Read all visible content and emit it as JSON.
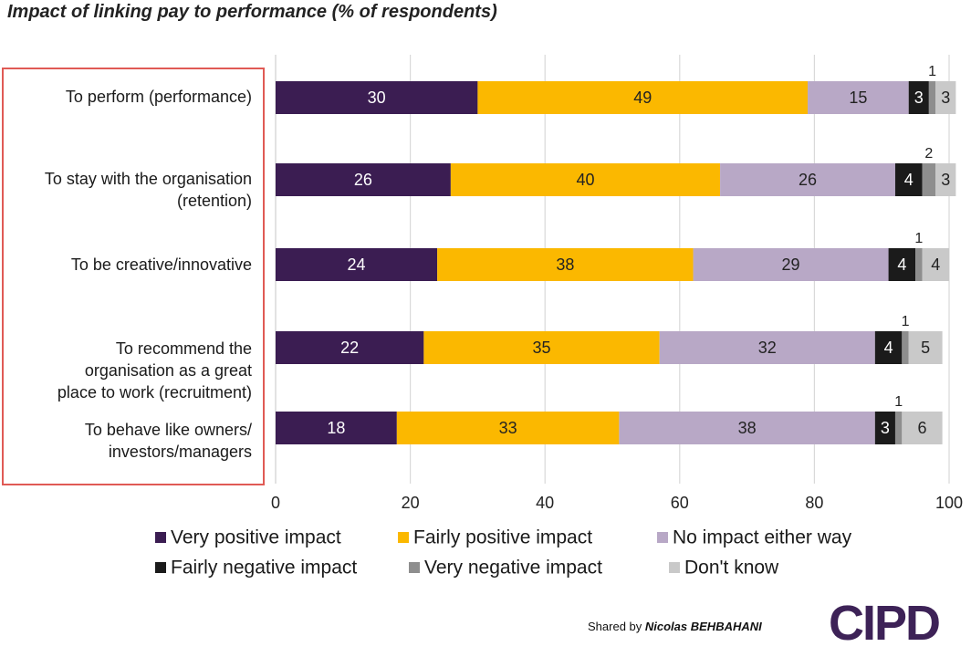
{
  "chart_data": {
    "type": "bar",
    "orientation": "horizontal",
    "stacked": true,
    "title": "Impact of linking pay to performance (% of respondents)",
    "categories": [
      [
        "To perform (performance)"
      ],
      [
        "To stay with the organisation",
        "(retention)"
      ],
      [
        "To be creative/innovative"
      ],
      [
        "To recommend the",
        "organisation as a great",
        "place to work (recruitment)"
      ],
      [
        "To behave like owners/",
        "investors/managers"
      ]
    ],
    "series": [
      {
        "name": "Very positive impact",
        "color": "#3b1d52",
        "label_color": "#ffffff",
        "values": [
          30,
          26,
          24,
          22,
          18
        ]
      },
      {
        "name": "Fairly positive impact",
        "color": "#fbb800",
        "label_color": "#222222",
        "values": [
          49,
          40,
          38,
          35,
          33
        ]
      },
      {
        "name": "No impact either way",
        "color": "#b8a8c6",
        "label_color": "#222222",
        "values": [
          15,
          26,
          29,
          32,
          38
        ]
      },
      {
        "name": "Fairly negative impact",
        "color": "#1b1b1b",
        "label_color": "#ffffff",
        "values": [
          3,
          4,
          4,
          4,
          3
        ]
      },
      {
        "name": "Very negative impact",
        "color": "#8e8e8e",
        "label_color": "#222222",
        "values": [
          1,
          2,
          1,
          1,
          1
        ]
      },
      {
        "name": "Don't know",
        "color": "#c9c9c9",
        "label_color": "#222222",
        "values": [
          3,
          3,
          4,
          5,
          6
        ]
      }
    ],
    "xlim": [
      0,
      100
    ],
    "xticks": [
      0,
      20,
      40,
      60,
      80,
      100
    ],
    "grid": true,
    "legend": "bottom",
    "highlight_box_color": "#e05a55"
  },
  "credit": {
    "prefix": "Shared by",
    "name": "Nicolas BEHBAHANI"
  },
  "logo": "CIPD"
}
